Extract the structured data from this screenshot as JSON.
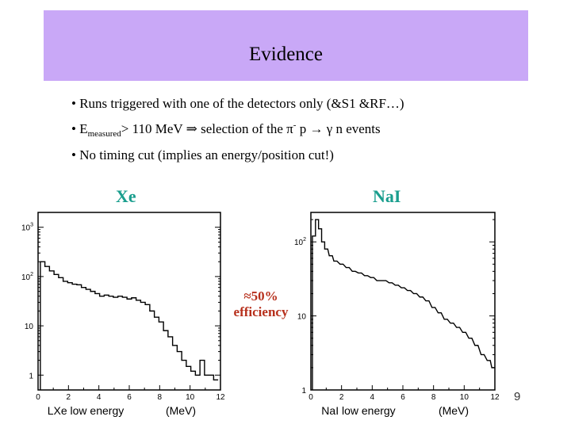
{
  "slide": {
    "title": "Evidence",
    "page_number": "9"
  },
  "bullets": {
    "b1": "• Runs triggered with one of the detectors only (&S1 &RF…)",
    "b2_prefix": "• E",
    "b2_sub": "measured",
    "b2_mid": "> 110 MeV ⇒ selection of the  π",
    "b2_sup": "-",
    "b2_suffix": " p → γ n  events",
    "b3": "• No timing cut (implies an energy/position cut!)"
  },
  "labels": {
    "xe": "Xe",
    "nai": "NaI",
    "annotation_line1": "≈50%",
    "annotation_line2": "efficiency"
  },
  "colors": {
    "title_bar": "#c9a8f7",
    "detector_label": "#1a9e8e",
    "annotation": "#b7301c"
  },
  "chart_data": [
    {
      "type": "line",
      "xlabel": "LXe low energy",
      "xunit": "(MeV)",
      "xlim": [
        0,
        12
      ],
      "yscale": "log",
      "ylim": [
        0.5,
        2000
      ],
      "x_ticks": [
        "0",
        "2",
        "4",
        "6",
        "8",
        "10",
        "12"
      ],
      "y_ticks": [
        {
          "label": "10",
          "exp": "3",
          "value": 1000
        },
        {
          "label": "10",
          "exp": "2",
          "value": 100
        },
        {
          "label": "10",
          "exp": "",
          "value": 10
        },
        {
          "label": "1",
          "exp": "",
          "value": 1
        }
      ],
      "series": [
        {
          "x": [
            0.3,
            0.6,
            0.9,
            1.2,
            1.5,
            1.8,
            2.1,
            2.4,
            2.7,
            3.0,
            3.3,
            3.6,
            3.9,
            4.2,
            4.5,
            4.8,
            5.1,
            5.4,
            5.7,
            6.0,
            6.3,
            6.6,
            6.9,
            7.2,
            7.5,
            7.8,
            8.1,
            8.4,
            8.7,
            9.0,
            9.3,
            9.6,
            9.9,
            10.2,
            10.5,
            10.8,
            11.1,
            11.4,
            11.7
          ],
          "y": [
            200,
            160,
            130,
            110,
            95,
            80,
            75,
            70,
            68,
            60,
            55,
            50,
            45,
            40,
            42,
            40,
            38,
            40,
            38,
            35,
            37,
            33,
            30,
            27,
            20,
            15,
            12,
            8,
            6,
            4,
            3,
            2,
            1.5,
            1.2,
            1,
            2,
            1,
            1,
            0.8
          ]
        }
      ]
    },
    {
      "type": "line",
      "xlabel": "NaI low energy",
      "xunit": "(MeV)",
      "xlim": [
        0,
        12
      ],
      "yscale": "log",
      "ylim": [
        1,
        250
      ],
      "x_ticks": [
        "0",
        "2",
        "4",
        "6",
        "8",
        "10",
        "12"
      ],
      "y_ticks": [
        {
          "label": "10",
          "exp": "2",
          "value": 100
        },
        {
          "label": "10",
          "exp": "",
          "value": 10
        },
        {
          "label": "1",
          "exp": "",
          "value": 1
        }
      ],
      "series": [
        {
          "x": [
            0.2,
            0.4,
            0.6,
            0.8,
            1.0,
            1.3,
            1.6,
            2.0,
            2.4,
            2.8,
            3.2,
            3.6,
            4.0,
            4.4,
            4.8,
            5.2,
            5.6,
            6.0,
            6.4,
            6.8,
            7.2,
            7.6,
            8.0,
            8.4,
            8.8,
            9.2,
            9.6,
            10.0,
            10.4,
            10.8,
            11.2,
            11.6,
            11.9
          ],
          "y": [
            120,
            200,
            150,
            100,
            80,
            65,
            55,
            50,
            45,
            40,
            38,
            35,
            33,
            30,
            30,
            28,
            26,
            24,
            22,
            20,
            18,
            16,
            13,
            11,
            9,
            8,
            7,
            6,
            5,
            4,
            3,
            2.5,
            2
          ]
        }
      ]
    }
  ]
}
